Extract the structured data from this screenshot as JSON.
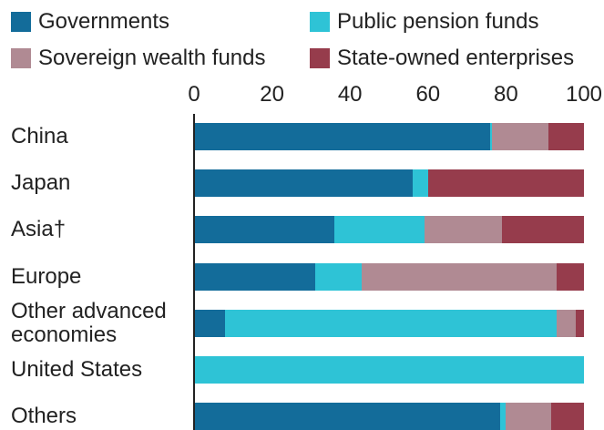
{
  "chart_data": {
    "type": "stacked-bar-horizontal",
    "categories": [
      "China",
      "Japan",
      "Asia†",
      "Europe",
      "Other advanced economies",
      "United States",
      "Others"
    ],
    "series": [
      {
        "name": "Governments",
        "color": "#136c9a",
        "values": [
          76,
          56,
          36,
          31,
          8,
          0,
          78.5
        ]
      },
      {
        "name": "Public pension funds",
        "color": "#2ec3d6",
        "values": [
          0.5,
          4,
          23,
          12,
          85,
          100,
          1.5
        ]
      },
      {
        "name": "Sovereign wealth funds",
        "color": "#b08a93",
        "values": [
          14.5,
          0,
          20,
          50,
          5,
          0,
          11.5
        ]
      },
      {
        "name": "State-owned enterprises",
        "color": "#963c4c",
        "values": [
          9,
          40,
          21,
          7,
          2,
          0,
          8.5
        ]
      }
    ],
    "xlim": [
      0,
      100
    ],
    "xticks": [
      0,
      20,
      40,
      60,
      80,
      100
    ],
    "grid": false
  }
}
